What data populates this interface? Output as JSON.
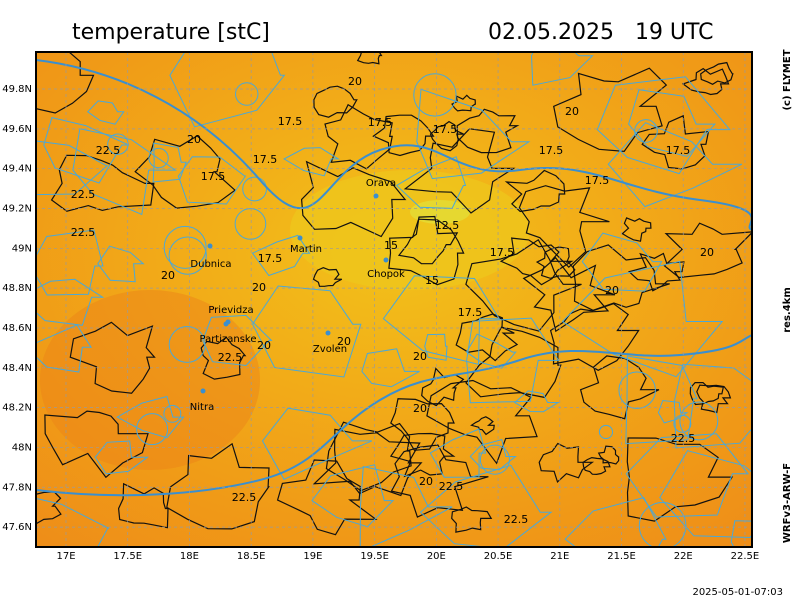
{
  "title": "temperature [stC]",
  "valid_time": "02.05.2025   19 UTC",
  "credit": "(c) FLYMET",
  "resolution": "res.4km",
  "model": "WRFv3-ARW-F",
  "run_time": "2025-05-01-07:03",
  "lon_range": [
    16.757,
    22.557
  ],
  "lat_range": [
    47.5,
    49.986
  ],
  "lon_ticks": [
    {
      "value": 17,
      "label": "17E"
    },
    {
      "value": 17.5,
      "label": "17.5E"
    },
    {
      "value": 18,
      "label": "18E"
    },
    {
      "value": 18.5,
      "label": "18.5E"
    },
    {
      "value": 19,
      "label": "19E"
    },
    {
      "value": 19.5,
      "label": "19.5E"
    },
    {
      "value": 20,
      "label": "20E"
    },
    {
      "value": 20.5,
      "label": "20.5E"
    },
    {
      "value": 21,
      "label": "21E"
    },
    {
      "value": 21.5,
      "label": "21.5E"
    },
    {
      "value": 22,
      "label": "22E"
    },
    {
      "value": 22.5,
      "label": "22.5E"
    }
  ],
  "lat_ticks": [
    {
      "value": 47.6,
      "label": "47.6N"
    },
    {
      "value": 47.8,
      "label": "47.8N"
    },
    {
      "value": 48,
      "label": "48N"
    },
    {
      "value": 48.2,
      "label": "48.2N"
    },
    {
      "value": 48.4,
      "label": "48.4N"
    },
    {
      "value": 48.6,
      "label": "48.6N"
    },
    {
      "value": 48.8,
      "label": "48.8N"
    },
    {
      "value": 49,
      "label": "49N"
    },
    {
      "value": 49.2,
      "label": "49.2N"
    },
    {
      "value": 49.4,
      "label": "49.4N"
    },
    {
      "value": 49.6,
      "label": "49.6N"
    },
    {
      "value": 49.8,
      "label": "49.8N"
    }
  ],
  "cities": [
    "Orava",
    "Martin",
    "Dubnica",
    "Chopok",
    "Prievidza",
    "Partizanske",
    "Zvolen",
    "Nitra"
  ],
  "contour_labels": [
    20,
    17.5,
    17.5,
    17.5,
    20,
    22.5,
    20,
    17.5,
    17.5,
    17.5,
    17.5,
    17.5,
    22.5,
    12.5,
    22.5,
    15,
    17.5,
    20,
    17.5,
    20,
    20,
    15,
    20,
    17.5,
    20,
    20,
    22.5,
    20,
    20,
    22.5,
    20,
    22.5,
    22.5,
    22.5
  ]
}
